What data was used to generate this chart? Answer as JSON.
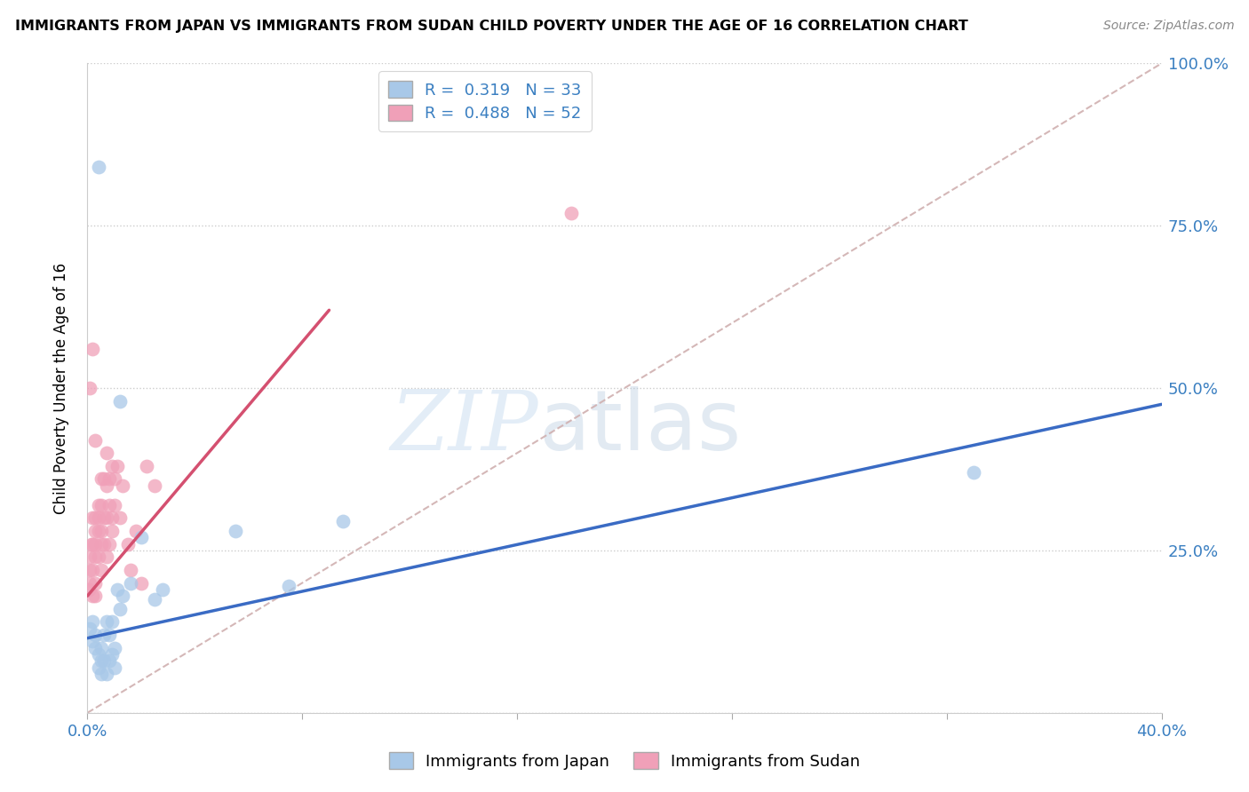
{
  "title": "IMMIGRANTS FROM JAPAN VS IMMIGRANTS FROM SUDAN CHILD POVERTY UNDER THE AGE OF 16 CORRELATION CHART",
  "source": "Source: ZipAtlas.com",
  "ylabel": "Child Poverty Under the Age of 16",
  "xlim": [
    0.0,
    0.4
  ],
  "ylim": [
    0.0,
    1.0
  ],
  "japan_color": "#a8c8e8",
  "sudan_color": "#f0a0b8",
  "japan_R": 0.319,
  "japan_N": 33,
  "sudan_R": 0.488,
  "sudan_N": 52,
  "japan_line_color": "#3a6bc4",
  "sudan_line_color": "#d45070",
  "ref_line_color": "#d0b0b0",
  "japan_line_x0": 0.0,
  "japan_line_y0": 0.115,
  "japan_line_x1": 0.4,
  "japan_line_y1": 0.475,
  "sudan_line_x0": 0.0,
  "sudan_line_y0": 0.18,
  "sudan_line_x1": 0.09,
  "sudan_line_y1": 0.62,
  "japan_x": [
    0.001,
    0.002,
    0.002,
    0.003,
    0.003,
    0.004,
    0.004,
    0.005,
    0.005,
    0.005,
    0.006,
    0.006,
    0.007,
    0.007,
    0.008,
    0.008,
    0.009,
    0.009,
    0.01,
    0.01,
    0.011,
    0.012,
    0.013,
    0.016,
    0.02,
    0.025,
    0.028,
    0.055,
    0.075,
    0.095,
    0.012,
    0.33,
    0.004
  ],
  "japan_y": [
    0.13,
    0.14,
    0.11,
    0.1,
    0.12,
    0.07,
    0.09,
    0.06,
    0.1,
    0.08,
    0.12,
    0.08,
    0.14,
    0.06,
    0.12,
    0.08,
    0.09,
    0.14,
    0.07,
    0.1,
    0.19,
    0.16,
    0.18,
    0.2,
    0.27,
    0.175,
    0.19,
    0.28,
    0.195,
    0.295,
    0.48,
    0.37,
    0.84
  ],
  "sudan_x": [
    0.0005,
    0.001,
    0.001,
    0.001,
    0.0015,
    0.002,
    0.002,
    0.002,
    0.002,
    0.003,
    0.003,
    0.003,
    0.003,
    0.003,
    0.003,
    0.004,
    0.004,
    0.004,
    0.004,
    0.005,
    0.005,
    0.005,
    0.005,
    0.005,
    0.006,
    0.006,
    0.006,
    0.007,
    0.007,
    0.007,
    0.007,
    0.008,
    0.008,
    0.008,
    0.009,
    0.009,
    0.009,
    0.01,
    0.01,
    0.011,
    0.012,
    0.013,
    0.015,
    0.016,
    0.018,
    0.02,
    0.022,
    0.025,
    0.001,
    0.002,
    0.003,
    0.18
  ],
  "sudan_y": [
    0.19,
    0.2,
    0.22,
    0.24,
    0.26,
    0.22,
    0.26,
    0.3,
    0.18,
    0.28,
    0.24,
    0.26,
    0.2,
    0.18,
    0.3,
    0.32,
    0.24,
    0.28,
    0.3,
    0.22,
    0.26,
    0.28,
    0.32,
    0.36,
    0.3,
    0.26,
    0.36,
    0.3,
    0.35,
    0.24,
    0.4,
    0.32,
    0.36,
    0.26,
    0.38,
    0.28,
    0.3,
    0.32,
    0.36,
    0.38,
    0.3,
    0.35,
    0.26,
    0.22,
    0.28,
    0.2,
    0.38,
    0.35,
    0.5,
    0.56,
    0.42,
    0.77
  ]
}
